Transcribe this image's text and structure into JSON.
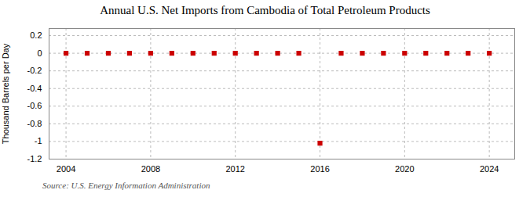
{
  "chart_data": {
    "type": "scatter",
    "title": "Annual U.S. Net Imports from Cambodia of Total Petroleum Products",
    "ylabel": "Thousand Barrels per Day",
    "source": "Source: U.S. Energy Information Administration",
    "x": [
      2004,
      2005,
      2006,
      2007,
      2008,
      2009,
      2010,
      2011,
      2012,
      2013,
      2014,
      2015,
      2016,
      2017,
      2018,
      2019,
      2020,
      2021,
      2022,
      2023,
      2024
    ],
    "values": [
      0,
      0,
      0,
      0,
      0,
      0,
      0,
      0,
      0,
      0,
      0,
      0,
      -1.02,
      0,
      0,
      0,
      0,
      0,
      0,
      0,
      0
    ],
    "color": "#cc0000",
    "marker": "square",
    "xlim": [
      2003.2,
      2025.2
    ],
    "ylim": [
      -1.2,
      0.28
    ],
    "xticks": [
      2004,
      2008,
      2012,
      2016,
      2020,
      2024
    ],
    "yticks": [
      0.2,
      0,
      -0.2,
      -0.4,
      -0.6,
      -0.8,
      -1.0,
      -1.2
    ],
    "grid": true
  }
}
